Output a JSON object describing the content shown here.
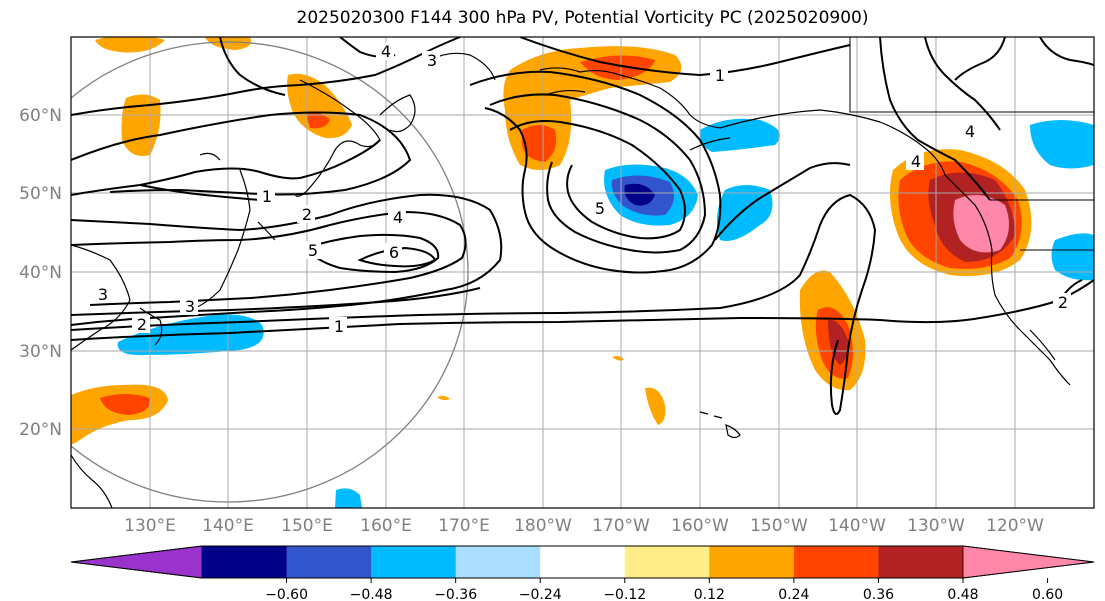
{
  "title": "2025020300 F144 300 hPa PV, Potential Vorticity PC (2025020900)",
  "lat_labels": [
    "60°N",
    "50°N",
    "40°N",
    "30°N",
    "20°N"
  ],
  "lon_labels": [
    "130°E",
    "140°E",
    "150°E",
    "160°E",
    "170°E",
    "180°W",
    "170°W",
    "160°W",
    "150°W",
    "140°W",
    "130°W",
    "120°W"
  ],
  "colorbar": {
    "ticks": [
      "−0.60",
      "−0.48",
      "−0.36",
      "−0.24",
      "−0.12",
      "0.12",
      "0.24",
      "0.36",
      "0.48",
      "0.60"
    ],
    "colors": [
      "#9933cc",
      "#000088",
      "#3355cc",
      "#00bbff",
      "#aaddff",
      "#ffffff",
      "#ffee88",
      "#ffa500",
      "#ff4400",
      "#b22222",
      "#ff88aa"
    ]
  },
  "contour_labels": [
    "4",
    "3",
    "1",
    "1",
    "2",
    "4",
    "5",
    "6",
    "5",
    "3",
    "3",
    "2",
    "1",
    "4",
    "4",
    "2"
  ],
  "colors": {
    "contour": "#000000",
    "grid": "#aaaaaa",
    "coast": "#000000"
  }
}
